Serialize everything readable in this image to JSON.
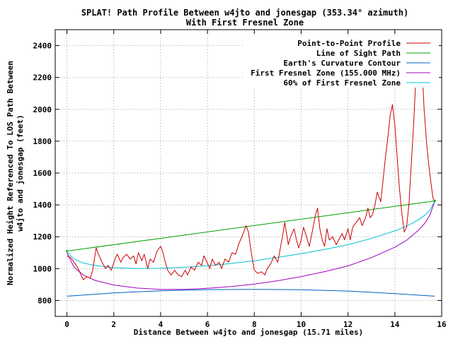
{
  "chart_data": {
    "type": "line",
    "title_lines": [
      "SPLAT! Path Profile Between w4jto and jonesgap (353.34° azimuth)",
      "With First Fresnel Zone"
    ],
    "xlabel": "Distance Between w4jto and jonesgap (15.71 miles)",
    "ylabel_lines": [
      "Normalized Height Referenced To LOS Path Between",
      "w4jto and jonesgap (feet)"
    ],
    "xlim": [
      -0.5,
      16
    ],
    "ylim": [
      700,
      2500
    ],
    "x_ticks": [
      0,
      2,
      4,
      6,
      8,
      10,
      12,
      14,
      16
    ],
    "x_tick_labels": [
      "0",
      "2",
      "4",
      "6",
      "8",
      "10",
      "12",
      "14",
      "16"
    ],
    "y_ticks": [
      800,
      1000,
      1200,
      1400,
      1600,
      1800,
      2000,
      2200,
      2400
    ],
    "y_tick_labels": [
      "800",
      "1000",
      "1200",
      "1400",
      "1600",
      "1800",
      "2000",
      "2200",
      "2400"
    ],
    "grid": true,
    "legend_position": "top-right",
    "series": [
      {
        "name": "Point-to-Point Profile",
        "color": "#cc0000",
        "points": [
          [
            0,
            1080
          ],
          [
            0.15,
            1070
          ],
          [
            0.3,
            1040
          ],
          [
            0.45,
            1010
          ],
          [
            0.6,
            960
          ],
          [
            0.7,
            930
          ],
          [
            0.85,
            950
          ],
          [
            1.0,
            940
          ],
          [
            1.1,
            990
          ],
          [
            1.25,
            1130
          ],
          [
            1.35,
            1090
          ],
          [
            1.5,
            1040
          ],
          [
            1.65,
            1000
          ],
          [
            1.75,
            1020
          ],
          [
            1.9,
            990
          ],
          [
            2.05,
            1060
          ],
          [
            2.15,
            1090
          ],
          [
            2.3,
            1040
          ],
          [
            2.4,
            1070
          ],
          [
            2.55,
            1090
          ],
          [
            2.7,
            1060
          ],
          [
            2.85,
            1080
          ],
          [
            2.95,
            1030
          ],
          [
            3.05,
            1100
          ],
          [
            3.2,
            1050
          ],
          [
            3.3,
            1090
          ],
          [
            3.45,
            1000
          ],
          [
            3.55,
            1060
          ],
          [
            3.7,
            1040
          ],
          [
            3.85,
            1110
          ],
          [
            4.0,
            1140
          ],
          [
            4.1,
            1100
          ],
          [
            4.2,
            1040
          ],
          [
            4.3,
            990
          ],
          [
            4.45,
            960
          ],
          [
            4.6,
            990
          ],
          [
            4.75,
            960
          ],
          [
            4.9,
            950
          ],
          [
            5.05,
            990
          ],
          [
            5.15,
            960
          ],
          [
            5.3,
            1010
          ],
          [
            5.45,
            990
          ],
          [
            5.6,
            1040
          ],
          [
            5.75,
            1020
          ],
          [
            5.85,
            1080
          ],
          [
            5.95,
            1050
          ],
          [
            6.1,
            1000
          ],
          [
            6.2,
            1060
          ],
          [
            6.35,
            1020
          ],
          [
            6.5,
            1040
          ],
          [
            6.6,
            1000
          ],
          [
            6.75,
            1060
          ],
          [
            6.9,
            1040
          ],
          [
            7.05,
            1100
          ],
          [
            7.2,
            1090
          ],
          [
            7.35,
            1160
          ],
          [
            7.5,
            1210
          ],
          [
            7.65,
            1270
          ],
          [
            7.75,
            1230
          ],
          [
            7.85,
            1120
          ],
          [
            8.0,
            990
          ],
          [
            8.15,
            970
          ],
          [
            8.3,
            980
          ],
          [
            8.45,
            960
          ],
          [
            8.55,
            1000
          ],
          [
            8.7,
            1030
          ],
          [
            8.85,
            1080
          ],
          [
            9.0,
            1040
          ],
          [
            9.1,
            1120
          ],
          [
            9.2,
            1200
          ],
          [
            9.3,
            1290
          ],
          [
            9.45,
            1150
          ],
          [
            9.55,
            1200
          ],
          [
            9.7,
            1250
          ],
          [
            9.8,
            1180
          ],
          [
            9.9,
            1130
          ],
          [
            10.0,
            1180
          ],
          [
            10.1,
            1260
          ],
          [
            10.25,
            1190
          ],
          [
            10.35,
            1140
          ],
          [
            10.5,
            1250
          ],
          [
            10.6,
            1330
          ],
          [
            10.7,
            1380
          ],
          [
            10.8,
            1250
          ],
          [
            10.9,
            1180
          ],
          [
            11.0,
            1140
          ],
          [
            11.1,
            1250
          ],
          [
            11.2,
            1180
          ],
          [
            11.35,
            1200
          ],
          [
            11.5,
            1150
          ],
          [
            11.6,
            1180
          ],
          [
            11.75,
            1220
          ],
          [
            11.85,
            1180
          ],
          [
            12.0,
            1250
          ],
          [
            12.1,
            1180
          ],
          [
            12.2,
            1260
          ],
          [
            12.35,
            1290
          ],
          [
            12.5,
            1320
          ],
          [
            12.6,
            1270
          ],
          [
            12.75,
            1320
          ],
          [
            12.85,
            1380
          ],
          [
            12.95,
            1320
          ],
          [
            13.05,
            1340
          ],
          [
            13.15,
            1400
          ],
          [
            13.25,
            1480
          ],
          [
            13.4,
            1420
          ],
          [
            13.5,
            1560
          ],
          [
            13.6,
            1700
          ],
          [
            13.7,
            1820
          ],
          [
            13.8,
            1960
          ],
          [
            13.9,
            2030
          ],
          [
            14.0,
            1900
          ],
          [
            14.1,
            1700
          ],
          [
            14.2,
            1500
          ],
          [
            14.3,
            1350
          ],
          [
            14.4,
            1230
          ],
          [
            14.5,
            1260
          ],
          [
            14.6,
            1400
          ],
          [
            14.7,
            1650
          ],
          [
            14.8,
            1900
          ],
          [
            14.9,
            2200
          ],
          [
            15.0,
            2420
          ],
          [
            15.08,
            2440
          ],
          [
            15.15,
            2300
          ],
          [
            15.25,
            2000
          ],
          [
            15.35,
            1800
          ],
          [
            15.45,
            1650
          ],
          [
            15.55,
            1530
          ],
          [
            15.63,
            1440
          ],
          [
            15.71,
            1420
          ]
        ]
      },
      {
        "name": "Line of Sight Path",
        "color": "#00a000",
        "points": [
          [
            0,
            1110
          ],
          [
            15.71,
            1425
          ]
        ]
      },
      {
        "name": "Earth's Curvature Contour",
        "color": "#0060c0",
        "points": [
          [
            0,
            827
          ],
          [
            2,
            847
          ],
          [
            4,
            861
          ],
          [
            6,
            868
          ],
          [
            7.855,
            870
          ],
          [
            10,
            867
          ],
          [
            12,
            859
          ],
          [
            14,
            843
          ],
          [
            15.71,
            827
          ]
        ]
      },
      {
        "name": "First Fresnel Zone (155.000 MHz)",
        "color": "#a000c0",
        "points": [
          [
            0,
            1100
          ],
          [
            0.3,
            1010
          ],
          [
            0.7,
            960
          ],
          [
            1.2,
            926
          ],
          [
            2,
            897
          ],
          [
            3,
            878
          ],
          [
            4,
            870
          ],
          [
            5,
            870
          ],
          [
            6,
            876
          ],
          [
            7,
            887
          ],
          [
            8,
            903
          ],
          [
            9,
            924
          ],
          [
            10,
            950
          ],
          [
            11,
            981
          ],
          [
            12,
            1017
          ],
          [
            13,
            1069
          ],
          [
            14,
            1134
          ],
          [
            14.5,
            1178
          ],
          [
            15,
            1240
          ],
          [
            15.3,
            1288
          ],
          [
            15.5,
            1338
          ],
          [
            15.71,
            1425
          ]
        ]
      },
      {
        "name": "60% of First Fresnel Zone",
        "color": "#00c0d0",
        "points": [
          [
            0,
            1105
          ],
          [
            0.3,
            1060
          ],
          [
            0.7,
            1035
          ],
          [
            1.2,
            1019
          ],
          [
            2,
            1006
          ],
          [
            3,
            1000
          ],
          [
            4,
            1002
          ],
          [
            5,
            1008
          ],
          [
            6,
            1018
          ],
          [
            7,
            1032
          ],
          [
            8,
            1049
          ],
          [
            9,
            1070
          ],
          [
            10,
            1094
          ],
          [
            11,
            1120
          ],
          [
            12,
            1150
          ],
          [
            13,
            1189
          ],
          [
            14,
            1237
          ],
          [
            14.5,
            1266
          ],
          [
            15,
            1306
          ],
          [
            15.3,
            1337
          ],
          [
            15.5,
            1368
          ],
          [
            15.71,
            1425
          ]
        ]
      }
    ]
  }
}
